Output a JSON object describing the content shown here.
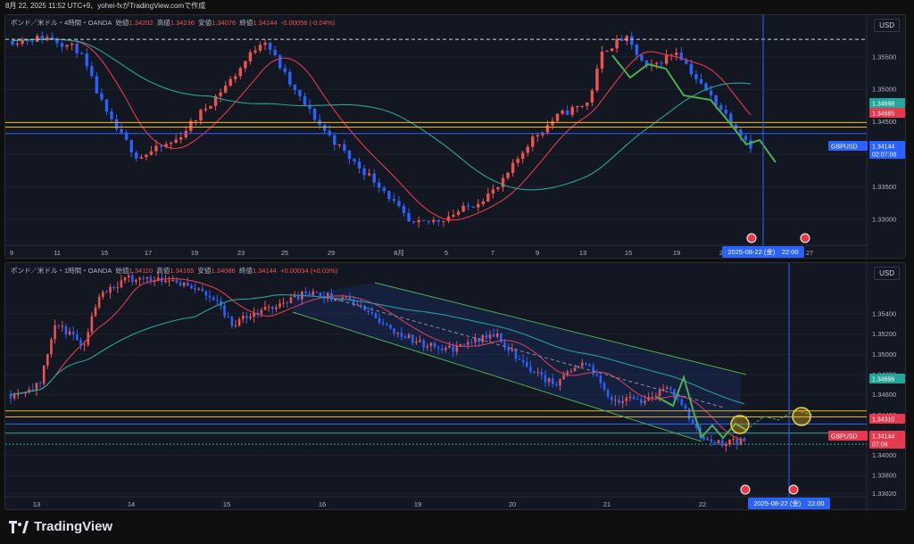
{
  "header": {
    "text": "8月 22, 2025 11:52 UTC+9、yohei-fxがTradingView.comで作成"
  },
  "footer": {
    "brand": "TradingView"
  },
  "colors": {
    "up": "#ef5350",
    "down": "#2962ff",
    "ma_fast": "#e53950",
    "ma_slow": "#26a69a",
    "wave": "#4caf50",
    "band": "#f0b90b"
  },
  "chart_data": [
    {
      "type": "candlestick",
      "title": "ポンド／米ドル・4時間・OANDA",
      "legend": {
        "open_label": "始値",
        "open": "1.34202",
        "high_label": "高値",
        "high": "1.34236",
        "low_label": "安値",
        "low": "1.34076",
        "close_label": "終値",
        "close": "1.34144",
        "change": "-0.00058 (-0.04%)"
      },
      "currency_label": "USD",
      "y_ticks": [
        "1.35500",
        "1.35000",
        "1.34500",
        "1.34000",
        "1.33500",
        "1.33000"
      ],
      "ylim": [
        1.326,
        1.3595
      ],
      "x_ticks": [
        "9",
        "11",
        "15",
        "17",
        "19",
        "23",
        "25",
        "29",
        "8月",
        "5",
        "7",
        "9",
        "13",
        "15",
        "19",
        "21",
        "27"
      ],
      "price_labels": [
        {
          "text": "1.34698",
          "color": "#26a69a"
        },
        {
          "text": "1.34685",
          "color": "#e53950"
        },
        {
          "text": "GBPUSD",
          "color": "#2962ff"
        },
        {
          "text": "1.34144",
          "color": "#2962ff"
        },
        {
          "text": "02:07:08",
          "color": "#2962ff"
        }
      ],
      "date_label": "2025-08-22 (金)　22:00",
      "horizontal_levels": [
        1.3577,
        1.3449,
        1.3442,
        1.3432
      ]
    },
    {
      "type": "candlestick",
      "title": "ポンド／米ドル・1時間・OANDA",
      "legend": {
        "open_label": "始値",
        "open": "1.34110",
        "high_label": "高値",
        "high": "1.34165",
        "low_label": "安値",
        "low": "1.34086",
        "close_label": "終値",
        "close": "1.34144",
        "change": "+0.00034 (+0.03%)"
      },
      "currency_label": "USD",
      "y_ticks": [
        "1.35400",
        "1.35200",
        "1.35000",
        "1.34800",
        "1.34600",
        "1.34400",
        "1.34200",
        "1.34000",
        "1.33800",
        "1.33620"
      ],
      "ylim": [
        1.3359,
        1.3578
      ],
      "x_ticks": [
        "13",
        "14",
        "15",
        "16",
        "19",
        "20",
        "21",
        "22"
      ],
      "price_labels": [
        {
          "text": "1.34696",
          "color": "#26a69a"
        },
        {
          "text": "1.34310",
          "color": "#e53950"
        },
        {
          "text": "GBPUSD",
          "color": "#e53950"
        },
        {
          "text": "1.34144",
          "color": "#e53950"
        },
        {
          "text": "07:08",
          "color": "#e53950"
        }
      ],
      "date_label": "2025-08-22 (金)　22:00",
      "horizontal_levels": [
        1.3444,
        1.3438,
        1.3431,
        1.3422,
        1.3411
      ]
    }
  ]
}
